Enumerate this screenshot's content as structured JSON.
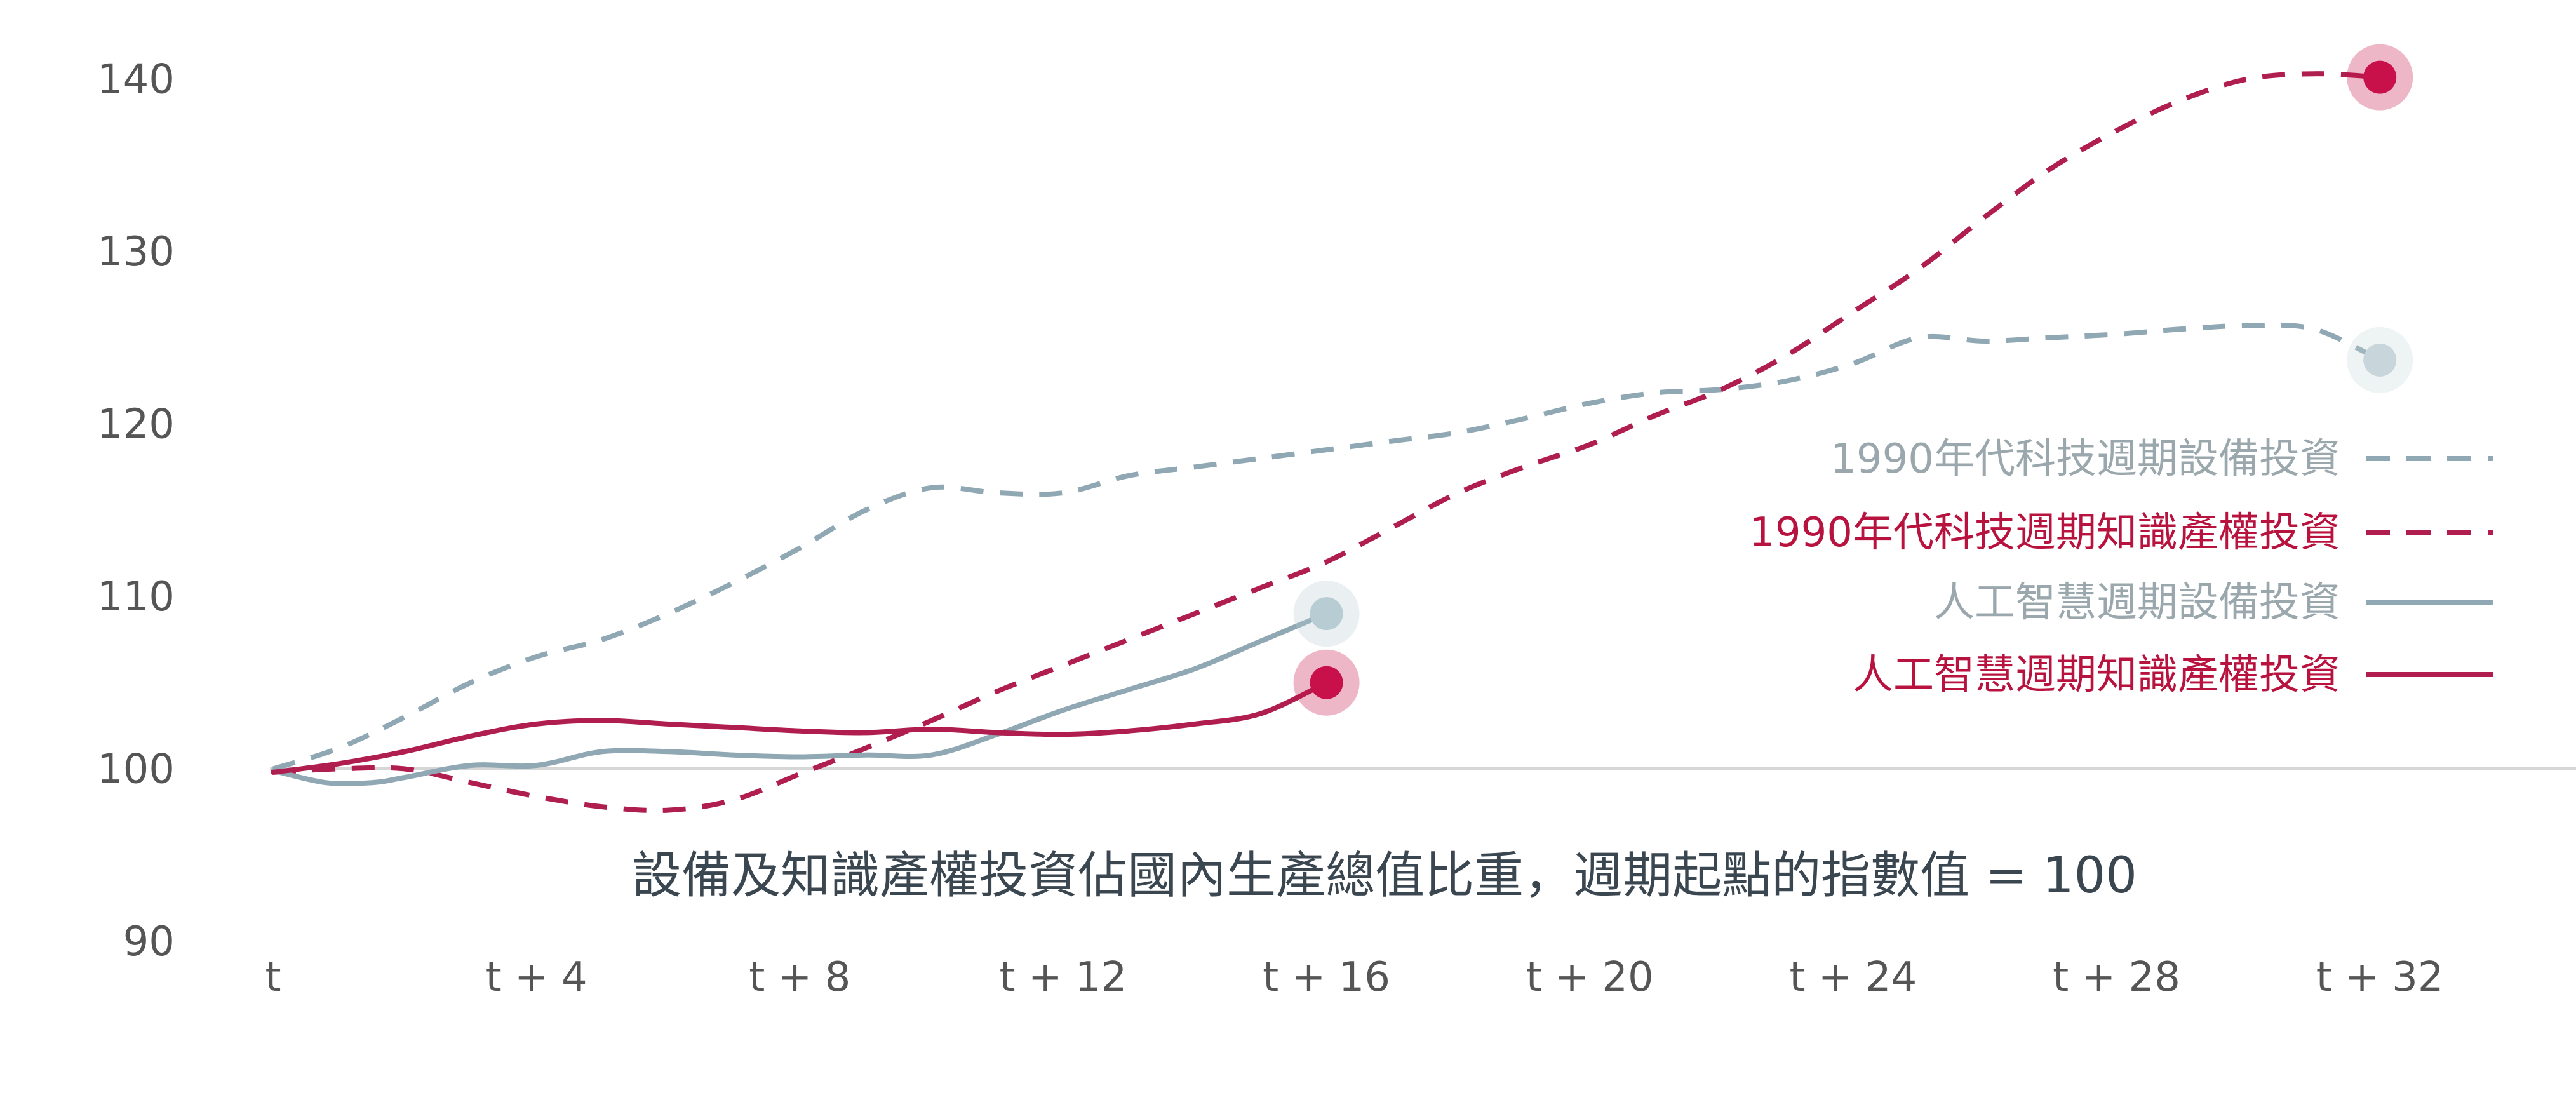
{
  "chart_data": {
    "type": "line",
    "subtitle": "設備及知識產權投資佔國內生產總值比重，週期起點的指數值 = 100",
    "xlabel": "",
    "ylabel": "",
    "x_tick_labels": [
      "t",
      "t + 4",
      "t + 8",
      "t + 12",
      "t + 16",
      "t + 20",
      "t + 24",
      "t + 28",
      "t + 32"
    ],
    "x_tick_values": [
      0,
      4,
      8,
      12,
      16,
      20,
      24,
      28,
      32
    ],
    "y_ticks": [
      90,
      100,
      110,
      120,
      130,
      140
    ],
    "xlim": [
      0,
      35.5
    ],
    "ylim": [
      90,
      142
    ],
    "baseline": 100,
    "grid": false,
    "legend_position": "right",
    "series": [
      {
        "name": "1990年代科技週期設備投資",
        "color": "#8fa8b3",
        "style": "dashed",
        "marker_color": "#c8d6dc",
        "x": [
          0,
          1,
          2,
          3,
          4,
          5,
          6,
          7,
          8,
          9,
          10,
          11,
          12,
          13,
          14,
          15,
          16,
          17,
          18,
          19,
          20,
          21,
          22,
          23,
          24,
          25,
          26,
          27,
          28,
          29,
          30,
          31,
          32
        ],
        "values": [
          100,
          101.2,
          103,
          105,
          106.5,
          107.5,
          109,
          110.8,
          112.8,
          115,
          116.3,
          116,
          116,
          117,
          117.5,
          118,
          118.5,
          119,
          119.5,
          120.3,
          121.2,
          121.8,
          122,
          122.5,
          123.5,
          125,
          124.8,
          125,
          125.2,
          125.5,
          125.7,
          125.5,
          123.7
        ]
      },
      {
        "name": "1990年代科技週期知識產權投資",
        "color": "#b01e4f",
        "style": "dashed",
        "marker_color": "#c8104a",
        "x": [
          0,
          1,
          2,
          3,
          4,
          5,
          6,
          7,
          8,
          9,
          10,
          11,
          12,
          13,
          14,
          15,
          16,
          17,
          18,
          19,
          20,
          21,
          22,
          23,
          24,
          25,
          26,
          27,
          28,
          29,
          30,
          31,
          32
        ],
        "values": [
          99.8,
          100,
          100,
          99.2,
          98.4,
          97.8,
          97.6,
          98.2,
          99.7,
          101.2,
          102.8,
          104.5,
          106,
          107.5,
          109,
          110.5,
          112,
          114,
          116,
          117.5,
          118.8,
          120.5,
          122,
          124,
          126.5,
          129,
          132,
          134.8,
          137,
          138.8,
          140,
          140.3,
          140.1
        ]
      },
      {
        "name": "人工智慧週期設備投資",
        "color": "#8fa8b3",
        "style": "solid",
        "marker_color": "#b8ccd4",
        "x": [
          0,
          0.8,
          1.5,
          2,
          3,
          4,
          5,
          6,
          7,
          8,
          9,
          10,
          11,
          12,
          13,
          14,
          15,
          16
        ],
        "values": [
          99.9,
          99.2,
          99.2,
          99.5,
          100.2,
          100.2,
          101,
          101,
          100.8,
          100.7,
          100.8,
          100.8,
          102,
          103.4,
          104.6,
          105.8,
          107.4,
          109
        ]
      },
      {
        "name": "人工智慧週期知識產權投資",
        "color": "#b01e4f",
        "style": "solid",
        "marker_color": "#c8104a",
        "x": [
          0,
          1,
          2,
          3,
          4,
          5,
          6,
          7,
          8,
          9,
          10,
          11,
          12,
          13,
          14,
          15,
          16
        ],
        "values": [
          99.8,
          100.3,
          101,
          101.9,
          102.6,
          102.8,
          102.6,
          102.4,
          102.2,
          102.1,
          102.3,
          102.1,
          102,
          102.2,
          102.6,
          103.2,
          105
        ]
      }
    ]
  }
}
